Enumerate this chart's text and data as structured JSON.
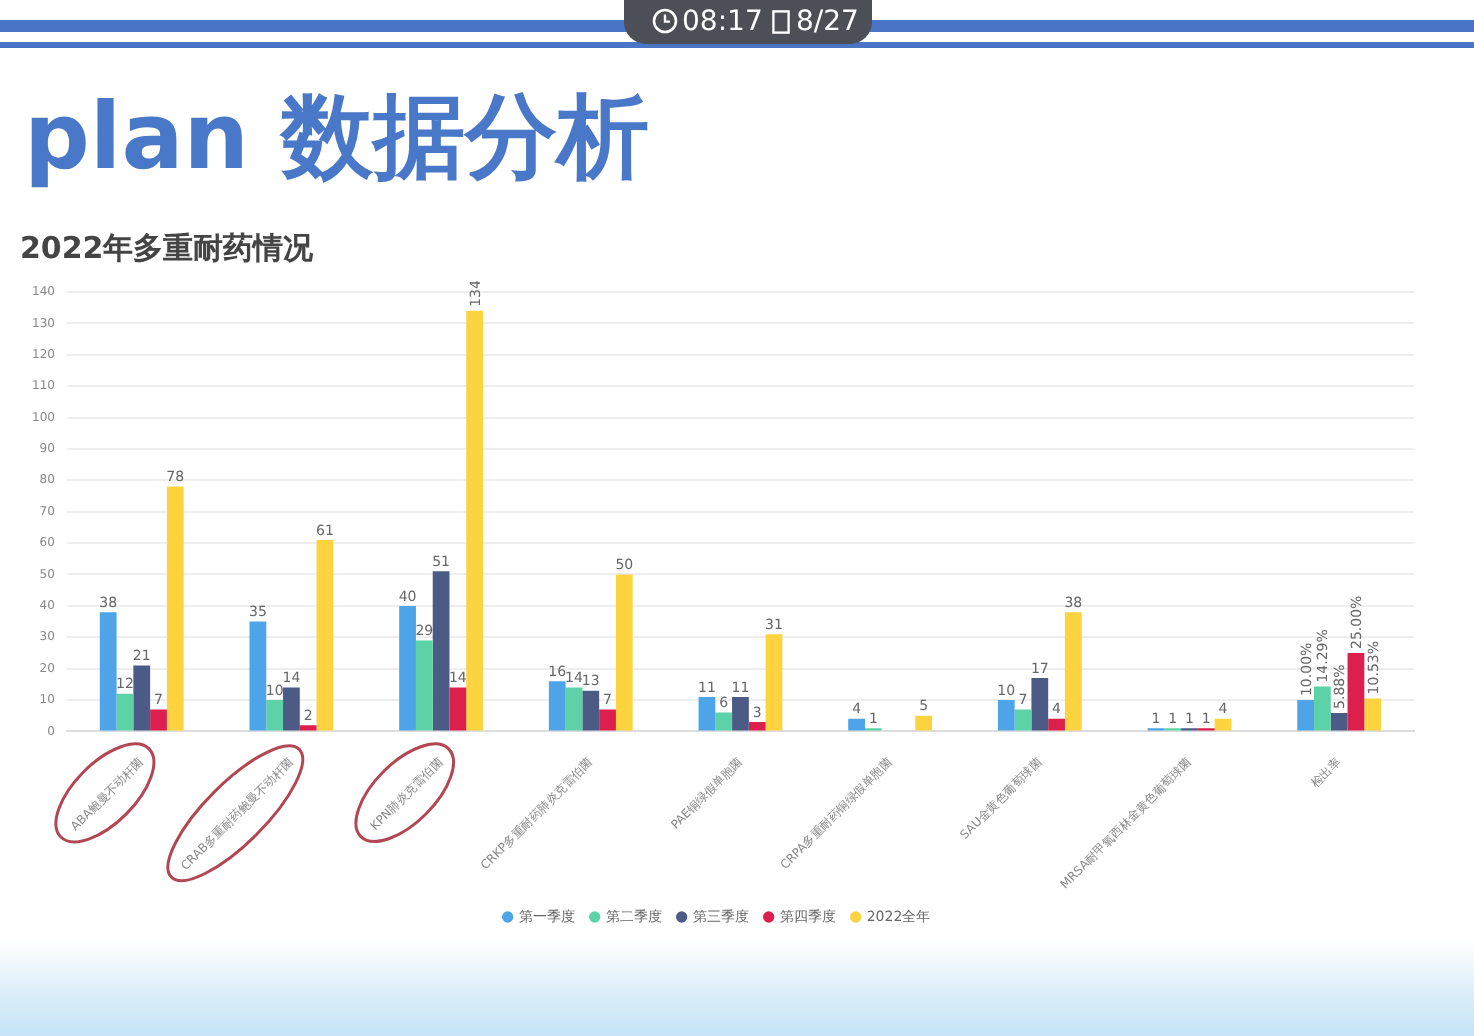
{
  "chart_data": {
    "type": "bar",
    "title": "plan 数据分析",
    "subtitle": "2022年多重耐药情况",
    "categories": [
      "ABA鲍曼不动杆菌",
      "CRAB多重耐药鲍曼不动杆菌",
      "KPN肺炎克雷伯菌",
      "CRKP多重耐药肺炎克雷伯菌",
      "PAE铜绿假单胞菌",
      "CRPA多重耐药铜绿假单胞菌",
      "SAU金黄色葡萄球菌",
      "MRSA耐甲氧西林金黄色葡萄球菌",
      "检出率"
    ],
    "series": [
      {
        "name": "第一季度",
        "color": "#4ea4e8",
        "values": [
          38,
          35,
          40,
          16,
          11,
          4,
          10,
          1,
          10
        ],
        "value_labels": [
          "38",
          "35",
          "40",
          "16",
          "11",
          "4",
          "10",
          "1",
          "10.00%"
        ]
      },
      {
        "name": "第二季度",
        "color": "#5dd2a6",
        "values": [
          12,
          10,
          29,
          14,
          6,
          1,
          7,
          1,
          14.29
        ],
        "value_labels": [
          "12",
          "10",
          "29",
          "14",
          "6",
          "1",
          "7",
          "1",
          "14.29%"
        ]
      },
      {
        "name": "第三季度",
        "color": "#4b5b86",
        "values": [
          21,
          14,
          51,
          13,
          11,
          null,
          17,
          1,
          5.88
        ],
        "value_labels": [
          "21",
          "14",
          "51",
          "13",
          "11",
          null,
          "17",
          "1",
          "5.88%"
        ]
      },
      {
        "name": "第四季度",
        "color": "#dc1f4c",
        "values": [
          7,
          2,
          14,
          7,
          3,
          null,
          4,
          1,
          25
        ],
        "value_labels": [
          "7",
          "2",
          "14",
          "7",
          "3",
          null,
          "4",
          "1",
          "25.00%"
        ]
      },
      {
        "name": "2022全年",
        "color": "#fdd33f",
        "values": [
          78,
          61,
          134,
          50,
          31,
          5,
          38,
          4,
          10.53
        ],
        "value_labels": [
          "78",
          "61",
          "134",
          "50",
          "31",
          "5",
          "38",
          "4",
          "10.53%"
        ]
      }
    ],
    "ylim": [
      0,
      140
    ],
    "yticks": [
      0,
      10,
      20,
      30,
      40,
      50,
      60,
      70,
      80,
      90,
      100,
      110,
      120,
      130,
      140
    ],
    "grid": "y",
    "legend": "bottom",
    "annotations": [
      "08:17",
      "8/27"
    ]
  }
}
